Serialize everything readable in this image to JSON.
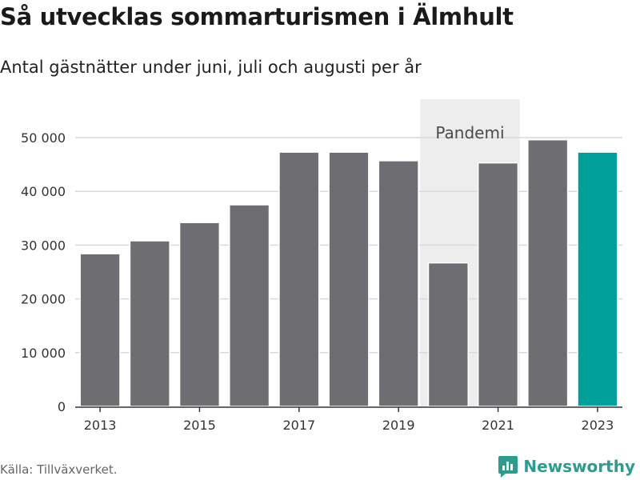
{
  "title": "Så utvecklas sommarturismen i Älmhult",
  "subtitle": "Antal gästnätter under juni, juli och augusti per år",
  "source": "Källa: Tillväxverket.",
  "brand": {
    "name": "Newsworthy",
    "icon": "newsworthy-logo-icon",
    "color": "#2a9d8f"
  },
  "chart_data": {
    "type": "bar",
    "categories": [
      "2013",
      "2014",
      "2015",
      "2016",
      "2017",
      "2018",
      "2019",
      "2020",
      "2021",
      "2022",
      "2023"
    ],
    "values": [
      28400,
      30800,
      34200,
      37500,
      47300,
      47300,
      45700,
      26700,
      45300,
      49600,
      47300
    ],
    "highlight_category": "2023",
    "colors": {
      "bar": "#6e6d72",
      "highlight": "#00a19a",
      "shade": "#ededed",
      "grid": "#d9d9d9",
      "axis": "#333333"
    },
    "ylim": [
      0,
      55000
    ],
    "yticks": [
      0,
      10000,
      20000,
      30000,
      40000,
      50000
    ],
    "ytick_labels": [
      "0",
      "10 000",
      "20 000",
      "30 000",
      "40 000",
      "50 000"
    ],
    "xtick_labels": [
      "2013",
      "2015",
      "2017",
      "2019",
      "2021",
      "2023"
    ],
    "grid": true,
    "annotation": {
      "label": "Pandemi",
      "from": "2020",
      "to": "2021"
    }
  }
}
